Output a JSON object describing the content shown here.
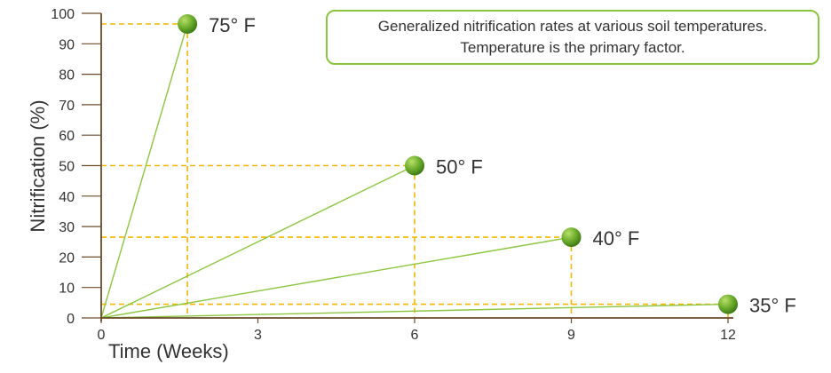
{
  "annotation": {
    "line1": "Generalized nitrification rates at various soil temperatures.",
    "line2": "Temperature is the primary factor."
  },
  "chart_data": {
    "type": "line",
    "xlabel": "Time (Weeks)",
    "ylabel": "Nitrification (%)",
    "xlim": [
      0,
      12
    ],
    "ylim": [
      0,
      100
    ],
    "x_ticks": [
      0,
      3,
      6,
      9,
      12
    ],
    "y_ticks": [
      0,
      10,
      20,
      30,
      40,
      50,
      60,
      70,
      80,
      90,
      100
    ],
    "grid": false,
    "guide_lines": "dashed yellow from each point to both axes",
    "line_color": "#8cc63f",
    "guide_color": "#f2b705",
    "marker_color": "#6aaa2a",
    "series": [
      {
        "name": "75° F",
        "x": [
          0,
          1.65
        ],
        "y": [
          0,
          96.5
        ]
      },
      {
        "name": "50° F",
        "x": [
          0,
          6
        ],
        "y": [
          0,
          50
        ]
      },
      {
        "name": "40° F",
        "x": [
          0,
          9
        ],
        "y": [
          0,
          26.5
        ]
      },
      {
        "name": "35° F",
        "x": [
          0,
          12
        ],
        "y": [
          0,
          4.5
        ]
      }
    ]
  }
}
